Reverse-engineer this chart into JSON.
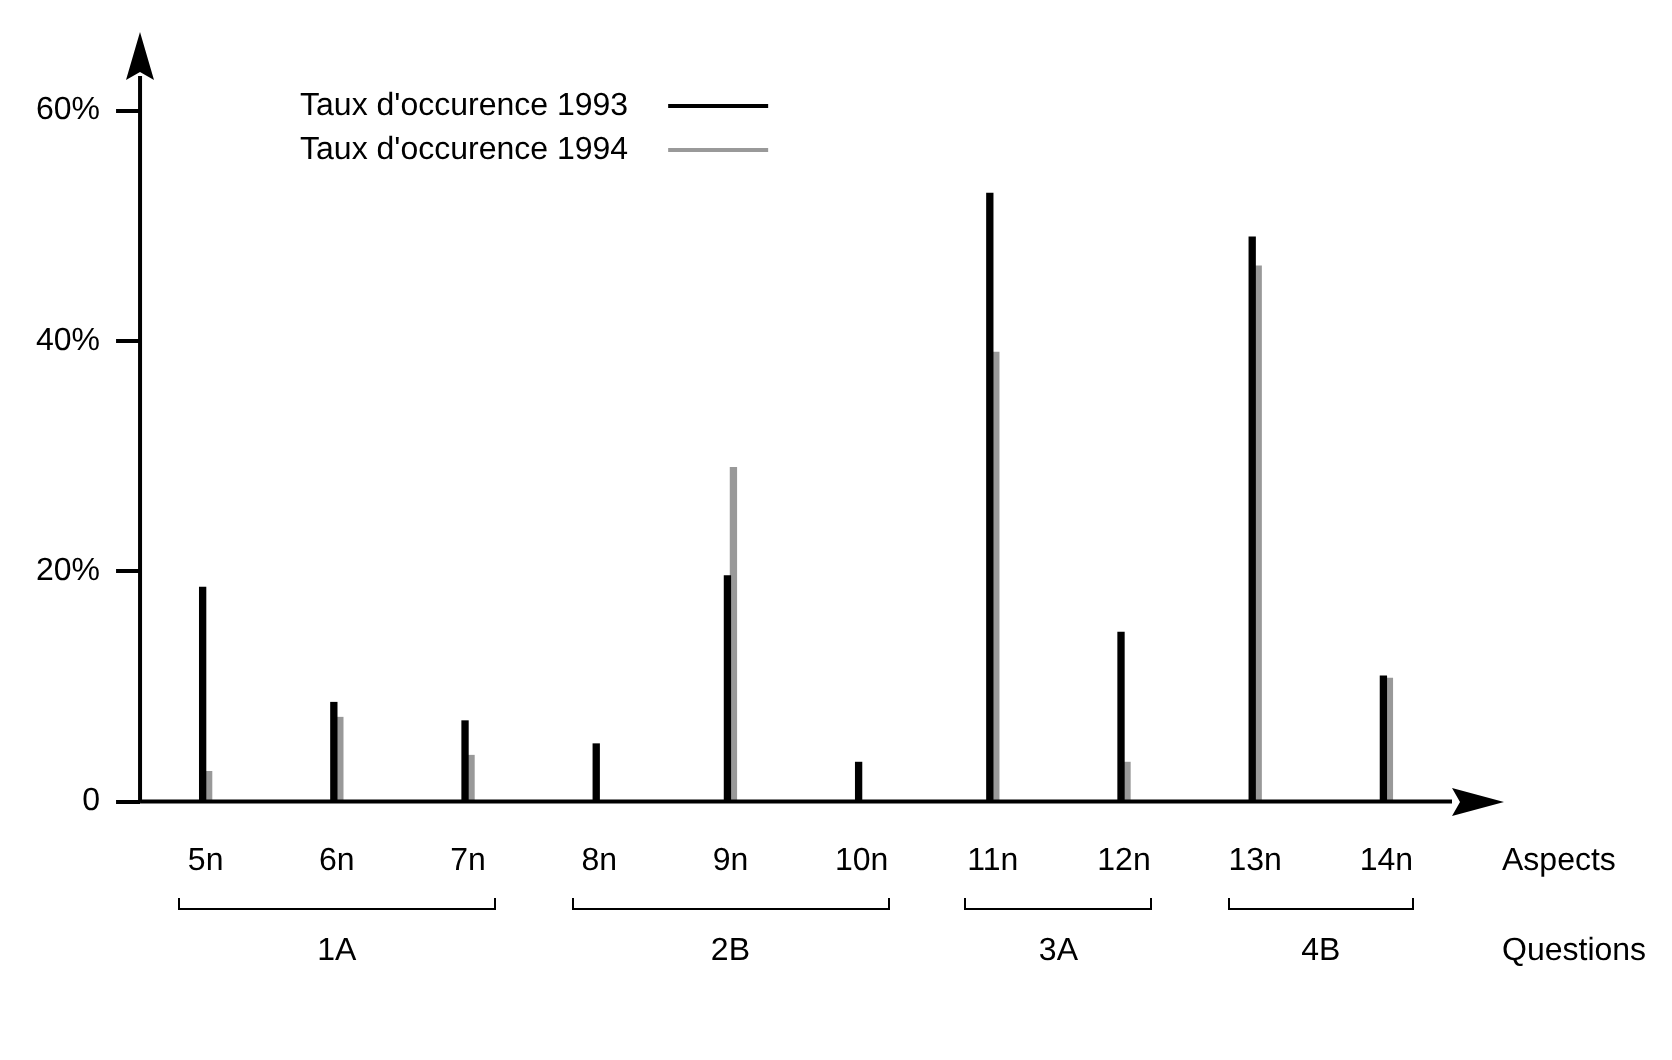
{
  "chart_data": {
    "type": "bar",
    "categories": [
      "5n",
      "6n",
      "7n",
      "8n",
      "9n",
      "10n",
      "11n",
      "12n",
      "13n",
      "14n"
    ],
    "series": [
      {
        "name": "Taux d'occurence 1993",
        "color": "#000000",
        "values": [
          18.6,
          8.6,
          7.0,
          5.0,
          19.6,
          3.4,
          52.8,
          14.7,
          49.0,
          10.9
        ]
      },
      {
        "name": "Taux d'occurence 1994",
        "color": "#999999",
        "values": [
          2.6,
          7.3,
          4.0,
          null,
          29.0,
          null,
          39.0,
          3.4,
          46.5,
          10.7
        ]
      }
    ],
    "ylim": [
      0,
      63
    ],
    "yticks": [
      {
        "value": 0,
        "label": "0"
      },
      {
        "value": 20,
        "label": "20%"
      },
      {
        "value": 40,
        "label": "40%"
      },
      {
        "value": 60,
        "label": "60%"
      }
    ],
    "xlabel": "Aspects",
    "annotations": [
      "1A",
      "2B",
      "3A",
      "4B",
      "Questions"
    ],
    "grid": false,
    "legend": "top left"
  }
}
